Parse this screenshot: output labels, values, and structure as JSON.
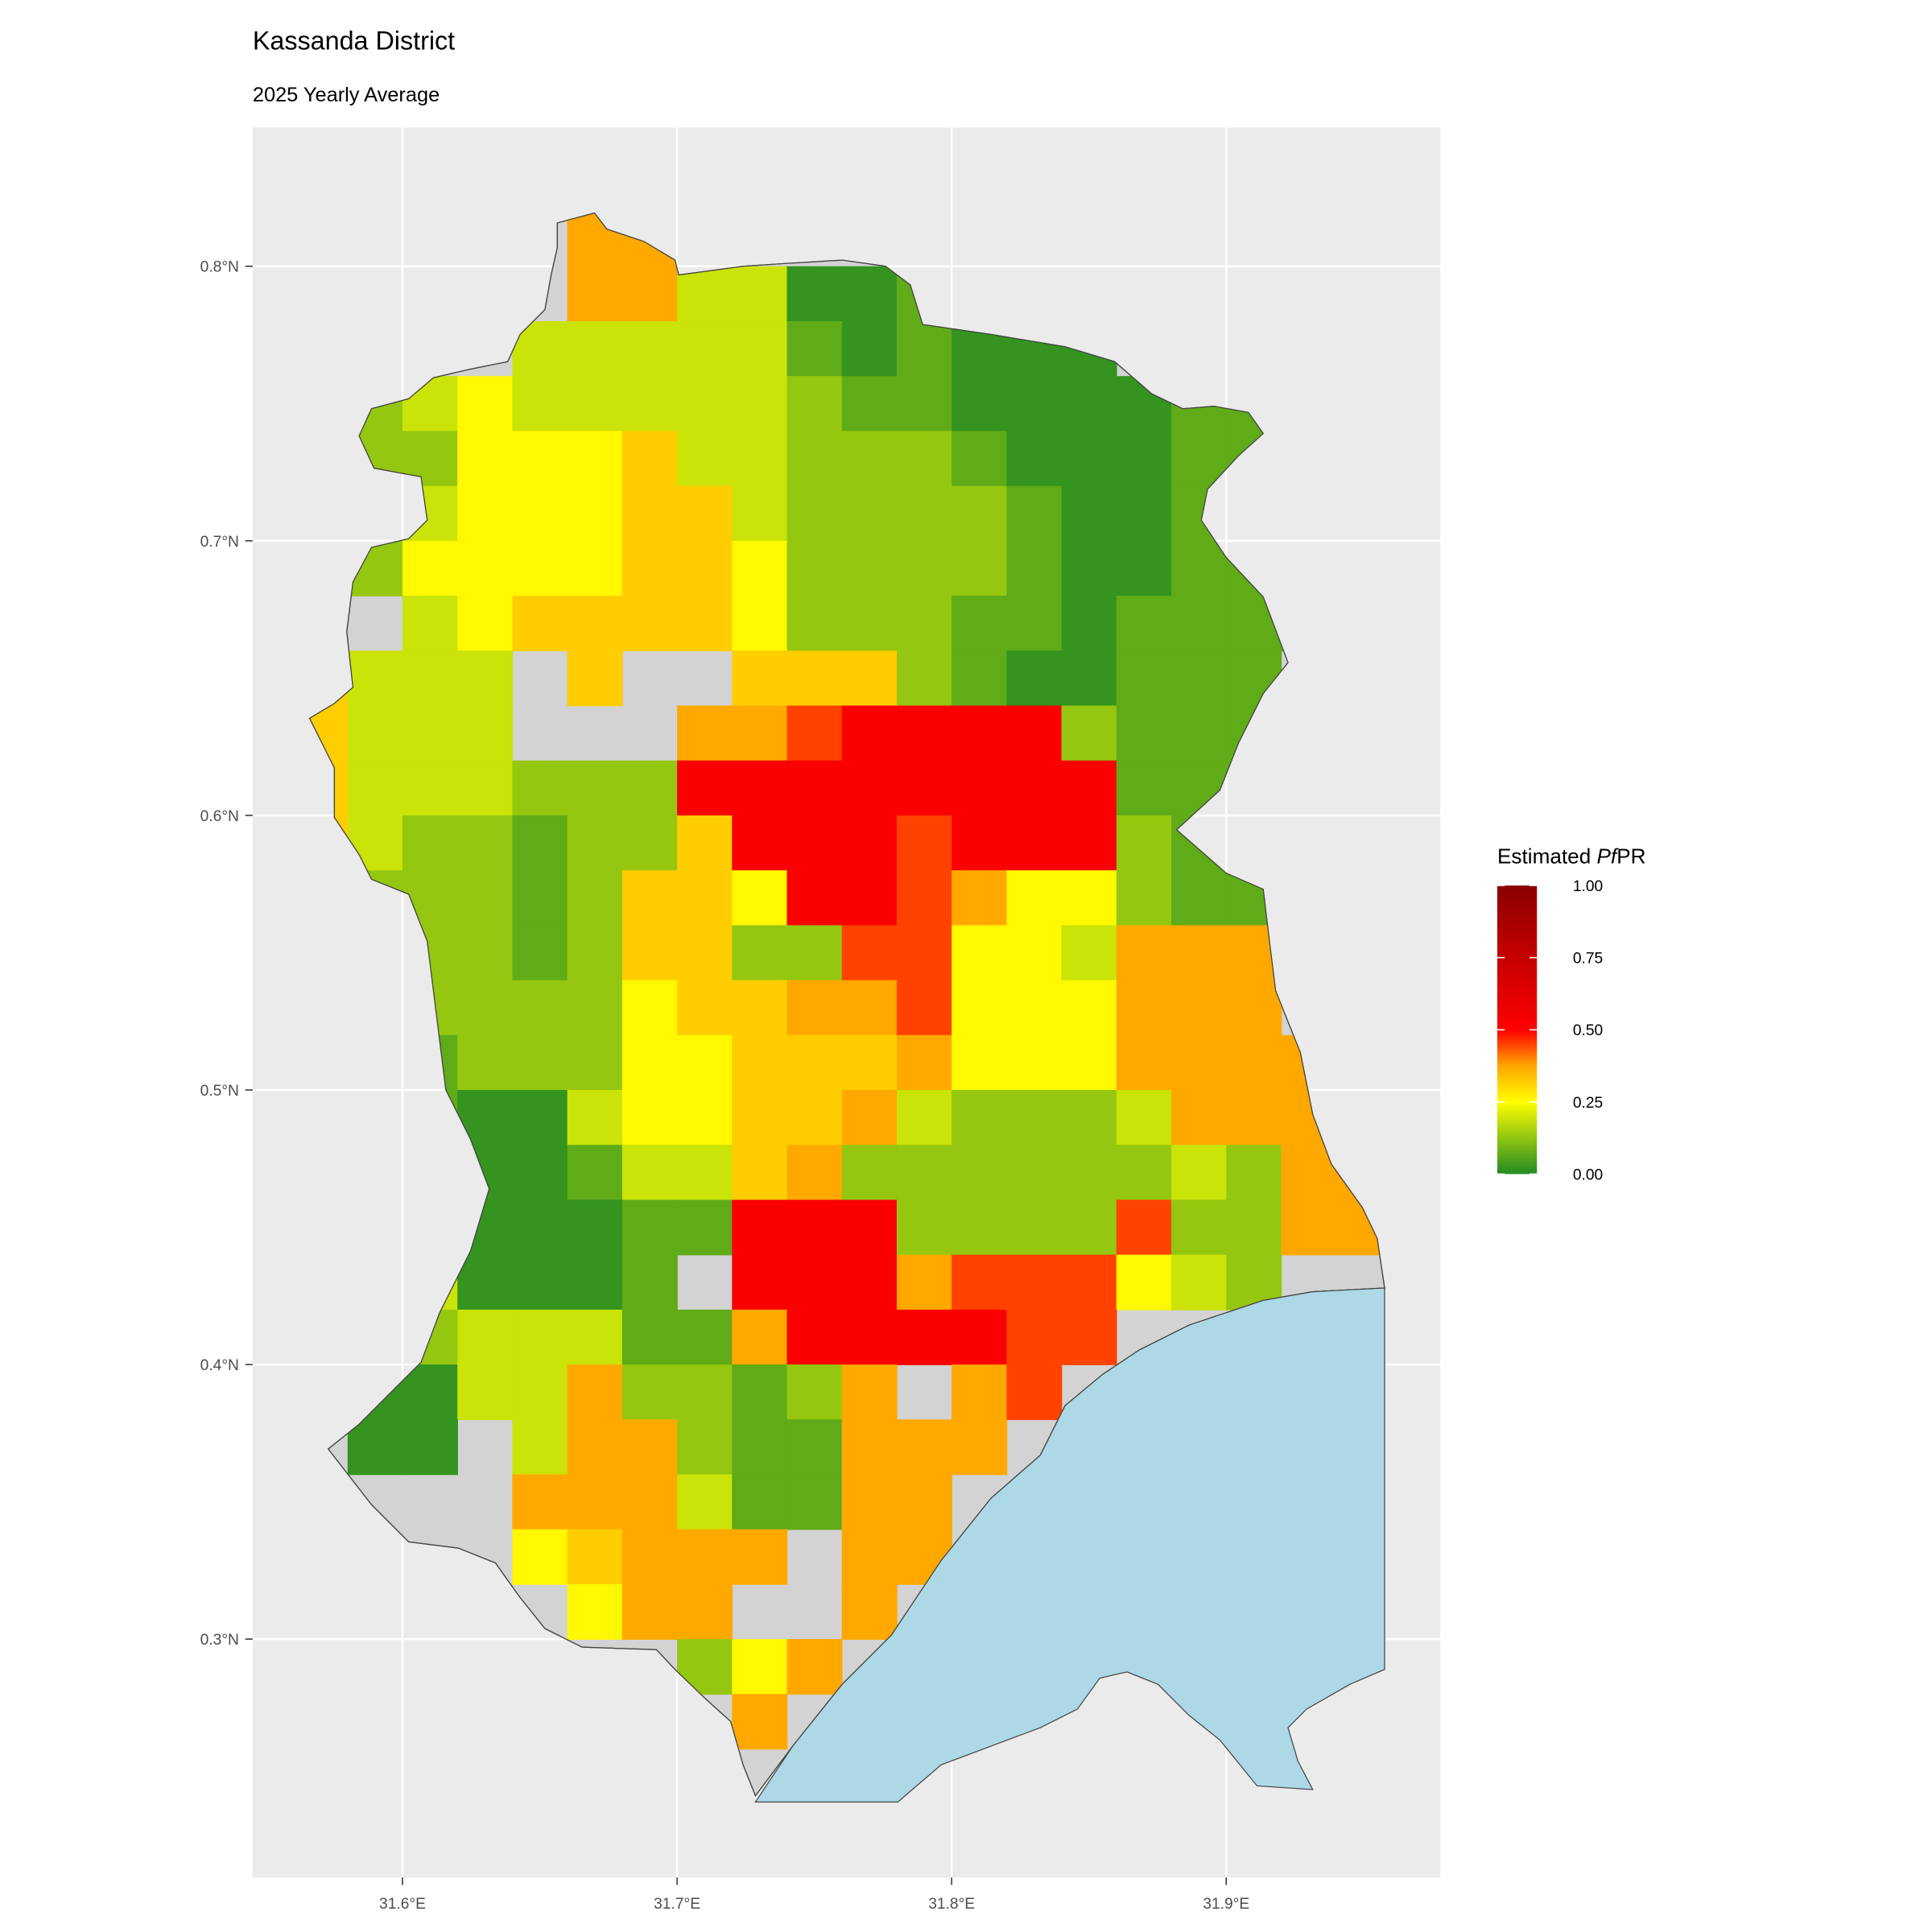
{
  "chart_data": {
    "type": "heatmap",
    "title": "Kassanda District",
    "subtitle": "2025 Yearly Average",
    "xlabel": "",
    "ylabel": "",
    "x_ticks": [
      {
        "value": 31.6,
        "label": "31.6°E"
      },
      {
        "value": 31.7,
        "label": "31.7°E"
      },
      {
        "value": 31.8,
        "label": "31.8°E"
      },
      {
        "value": 31.9,
        "label": "31.9°E"
      }
    ],
    "y_ticks": [
      {
        "value": 0.8,
        "label": "0.8°N"
      },
      {
        "value": 0.7,
        "label": "0.7°N"
      },
      {
        "value": 0.6,
        "label": "0.6°N"
      },
      {
        "value": 0.5,
        "label": "0.5°N"
      },
      {
        "value": 0.4,
        "label": "0.4°N"
      },
      {
        "value": 0.3,
        "label": "0.3°N"
      }
    ],
    "xlim": [
      31.545,
      31.978
    ],
    "ylim": [
      0.213,
      0.851
    ],
    "grid": true,
    "legend": {
      "title_prefix": "Estimated ",
      "title_italic": "Pf",
      "title_suffix": "PR",
      "placement": "right",
      "range": [
        0,
        1
      ],
      "ticks": [
        "1.00",
        "0.75",
        "0.50",
        "0.25",
        "0.00"
      ],
      "tick_values": [
        1,
        0.75,
        0.5,
        0.25,
        0
      ],
      "color_stops": [
        {
          "value": 0,
          "color": "#228B22"
        },
        {
          "value": 0.25,
          "color": "#FFFF00"
        },
        {
          "value": 0.375,
          "color": "#FFA500"
        },
        {
          "value": 0.5,
          "color": "#FF0000"
        },
        {
          "value": 1,
          "color": "#8B0000"
        }
      ]
    },
    "na_color": "#D3D3D3",
    "water_color": "#ADD8E6",
    "grid_resolution_deg": 0.02,
    "grid_origin": {
      "lon": 31.56,
      "lat": 0.84
    },
    "value_codes": {
      "D": 0.02,
      "G": 0.07,
      "g": 0.13,
      "l": 0.19,
      "Y": 0.26,
      "o": 0.32,
      "O": 0.37,
      "R": 0.45,
      "r": 0.52
    },
    "grid_rows": [
      "....................",
      ".....OO.............",
      ".....OOllDDG........",
      "....lllllGDGDDD.....",
      ".glYlllllgGGDDDDGG..",
      ".ggYYYollgggGDDDGG..",
      ".glYYYoolggggGDDG...",
      ".gYYYYooYggggGDDGG..",
      "..lYooooYgggGGDGGGG.",
      "olll.o..ooogGDDGGG..",
      "olll...OORrrrrgGGG..",
      "olllgggrrrrrrrrGGG..",
      "olggGggorrrRrrrgG...",
      ".gggGgooYrrROYYgGGl.",
      "..ggGgooggRRYYlOOO..",
      "..ggggYooOORYYYOOO..",
      "..GgggYYoooOYYYOOOO.",
      "..GDDlYYooOlggglOOO.",
      "...DDGlloOgggggglgOO",
      "...DDDGGrrrggggRggOO",
      "..lDDDG.rrrORRRYlg..",
      "..glllGGOrrrrRR.....",
      ".DDllOggGgO.OR......",
      ".DD.lOOgGGOOO.......",
      "....OOOlGGOO........",
      "....YoOOO.OO........",
      ".....YOO..O.........",
      ".......gYO..........",
      "........O...........",
      "...................."
    ]
  }
}
